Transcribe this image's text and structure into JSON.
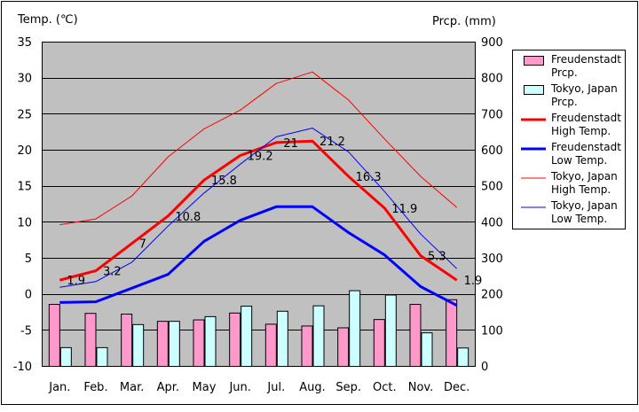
{
  "chart_data": {
    "type": "bar+line",
    "left_axis_label": "Temp. (℃)",
    "right_axis_label": "Prcp. (mm)",
    "left_ylim": [
      -10,
      35
    ],
    "left_ticks": [
      35,
      30,
      25,
      20,
      15,
      10,
      5,
      0,
      -5,
      -10
    ],
    "right_ylim": [
      0,
      900
    ],
    "right_ticks": [
      900,
      800,
      700,
      600,
      500,
      400,
      300,
      200,
      100,
      0
    ],
    "categories": [
      "Jan.",
      "Feb.",
      "Mar.",
      "Apr.",
      "May",
      "Jun.",
      "Jul.",
      "Aug.",
      "Sep.",
      "Oct.",
      "Nov.",
      "Dec."
    ],
    "grid": "horizontal",
    "legend_position": "right",
    "plot_background": "#c0c0c0",
    "bar_series": [
      {
        "name": "Freudenstadt Prcp.",
        "name_lines": [
          "Freudenstadt",
          "Prcp."
        ],
        "color": "#ff99cc",
        "values": [
          172,
          147,
          145,
          125,
          129,
          148,
          117,
          112,
          107,
          130,
          172,
          185
        ]
      },
      {
        "name": "Tokyo, Japan Prcp.",
        "name_lines": [
          "Tokyo, Japan",
          "Prcp."
        ],
        "color": "#ccffff",
        "values": [
          52,
          52,
          116,
          125,
          138,
          167,
          153,
          168,
          210,
          198,
          93,
          51
        ]
      }
    ],
    "line_series": [
      {
        "name": "Freudenstadt High Temp.",
        "name_lines": [
          "Freudenstadt",
          "High Temp."
        ],
        "color": "#ff0000",
        "width": 3,
        "values": [
          1.9,
          3.2,
          7.0,
          10.8,
          15.8,
          19.2,
          21.0,
          21.2,
          16.3,
          11.9,
          5.3,
          1.9
        ],
        "labels": [
          "1.9",
          "3.2",
          "7",
          "10.8",
          "15.8",
          "19.2",
          "21",
          "21.2",
          "16.3",
          "11.9",
          "5.3",
          "1.9"
        ]
      },
      {
        "name": "Freudenstadt Low Temp.",
        "name_lines": [
          "Freudenstadt",
          "Low Temp."
        ],
        "color": "#0000ff",
        "width": 3,
        "values": [
          -1.2,
          -1.1,
          0.8,
          2.7,
          7.3,
          10.2,
          12.1,
          12.1,
          8.5,
          5.4,
          1.0,
          -1.6
        ]
      },
      {
        "name": "Tokyo, Japan High Temp.",
        "name_lines": [
          "Tokyo, Japan",
          "High Temp."
        ],
        "color": "#ff0000",
        "width": 1,
        "values": [
          9.6,
          10.4,
          13.6,
          19.0,
          22.9,
          25.5,
          29.2,
          30.8,
          26.9,
          21.5,
          16.3,
          12.0
        ]
      },
      {
        "name": "Tokyo, Japan Low Temp.",
        "name_lines": [
          "Tokyo, Japan",
          "Low Temp."
        ],
        "color": "#0000ff",
        "width": 1,
        "values": [
          0.9,
          1.7,
          4.4,
          9.4,
          14.0,
          18.0,
          21.8,
          23.0,
          19.7,
          14.2,
          8.3,
          3.5
        ]
      }
    ]
  }
}
